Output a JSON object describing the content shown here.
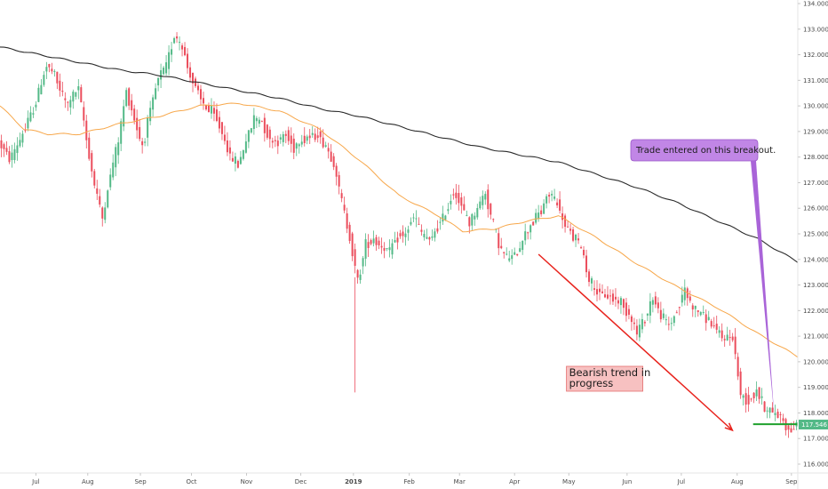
{
  "chart_data": {
    "type": "candlestick",
    "title": "",
    "xlabel": "",
    "ylabel": "",
    "y_axis_position": "right",
    "ylim": [
      115.8,
      134.2
    ],
    "y_ticks": [
      "116.000",
      "117.000",
      "118.000",
      "119.000",
      "120.000",
      "121.000",
      "122.000",
      "123.000",
      "124.000",
      "125.000",
      "126.000",
      "127.000",
      "128.000",
      "129.000",
      "130.000",
      "131.000",
      "132.000",
      "133.000",
      "134.000"
    ],
    "x_ticks": [
      {
        "label": "Jul",
        "pos": 0.045
      },
      {
        "label": "Aug",
        "pos": 0.11
      },
      {
        "label": "Sep",
        "pos": 0.176
      },
      {
        "label": "Oct",
        "pos": 0.24
      },
      {
        "label": "Nov",
        "pos": 0.309
      },
      {
        "label": "Dec",
        "pos": 0.377
      },
      {
        "label": "2019",
        "pos": 0.443
      },
      {
        "label": "Feb",
        "pos": 0.513
      },
      {
        "label": "Mar",
        "pos": 0.576
      },
      {
        "label": "Apr",
        "pos": 0.645
      },
      {
        "label": "May",
        "pos": 0.713
      },
      {
        "label": "Jun",
        "pos": 0.786
      },
      {
        "label": "Jul",
        "pos": 0.854
      },
      {
        "label": "Aug",
        "pos": 0.924
      },
      {
        "label": "Sep",
        "pos": 0.992
      }
    ],
    "price_anchors": [
      [
        0.0,
        128.6
      ],
      [
        0.015,
        127.9
      ],
      [
        0.03,
        128.9
      ],
      [
        0.045,
        130.0
      ],
      [
        0.06,
        131.6
      ],
      [
        0.07,
        131.2
      ],
      [
        0.085,
        130.0
      ],
      [
        0.1,
        130.7
      ],
      [
        0.11,
        128.7
      ],
      [
        0.12,
        126.9
      ],
      [
        0.13,
        125.6
      ],
      [
        0.14,
        127.3
      ],
      [
        0.15,
        128.6
      ],
      [
        0.16,
        130.6
      ],
      [
        0.17,
        129.5
      ],
      [
        0.18,
        128.4
      ],
      [
        0.19,
        129.8
      ],
      [
        0.2,
        131.1
      ],
      [
        0.21,
        131.5
      ],
      [
        0.22,
        132.8
      ],
      [
        0.23,
        132.3
      ],
      [
        0.24,
        131.2
      ],
      [
        0.25,
        130.5
      ],
      [
        0.26,
        129.9
      ],
      [
        0.27,
        129.7
      ],
      [
        0.28,
        129.0
      ],
      [
        0.29,
        128.0
      ],
      [
        0.3,
        127.7
      ],
      [
        0.31,
        128.6
      ],
      [
        0.32,
        129.5
      ],
      [
        0.33,
        129.4
      ],
      [
        0.34,
        128.7
      ],
      [
        0.35,
        128.6
      ],
      [
        0.36,
        128.9
      ],
      [
        0.37,
        128.4
      ],
      [
        0.38,
        128.7
      ],
      [
        0.39,
        128.8
      ],
      [
        0.4,
        128.9
      ],
      [
        0.41,
        128.4
      ],
      [
        0.42,
        127.8
      ],
      [
        0.43,
        126.2
      ],
      [
        0.44,
        124.9
      ],
      [
        0.45,
        123.1
      ],
      [
        0.46,
        124.6
      ],
      [
        0.47,
        124.8
      ],
      [
        0.48,
        124.5
      ],
      [
        0.49,
        124.3
      ],
      [
        0.5,
        124.9
      ],
      [
        0.51,
        125.0
      ],
      [
        0.52,
        125.7
      ],
      [
        0.53,
        125.0
      ],
      [
        0.54,
        124.7
      ],
      [
        0.55,
        125.3
      ],
      [
        0.56,
        125.8
      ],
      [
        0.57,
        126.7
      ],
      [
        0.58,
        126.1
      ],
      [
        0.59,
        125.4
      ],
      [
        0.6,
        126.0
      ],
      [
        0.61,
        126.6
      ],
      [
        0.62,
        125.3
      ],
      [
        0.63,
        124.3
      ],
      [
        0.64,
        124.0
      ],
      [
        0.65,
        124.3
      ],
      [
        0.66,
        125.0
      ],
      [
        0.67,
        125.5
      ],
      [
        0.68,
        125.9
      ],
      [
        0.69,
        126.6
      ],
      [
        0.7,
        126.2
      ],
      [
        0.71,
        125.3
      ],
      [
        0.72,
        124.9
      ],
      [
        0.73,
        124.5
      ],
      [
        0.74,
        123.2
      ],
      [
        0.75,
        122.7
      ],
      [
        0.76,
        122.6
      ],
      [
        0.77,
        122.5
      ],
      [
        0.78,
        122.3
      ],
      [
        0.79,
        121.9
      ],
      [
        0.8,
        121.1
      ],
      [
        0.81,
        121.7
      ],
      [
        0.82,
        122.5
      ],
      [
        0.83,
        121.8
      ],
      [
        0.84,
        121.4
      ],
      [
        0.85,
        122.0
      ],
      [
        0.86,
        122.8
      ],
      [
        0.87,
        122.1
      ],
      [
        0.88,
        121.9
      ],
      [
        0.89,
        121.6
      ],
      [
        0.9,
        121.2
      ],
      [
        0.91,
        120.9
      ],
      [
        0.92,
        121.0
      ],
      [
        0.93,
        118.7
      ],
      [
        0.94,
        118.5
      ],
      [
        0.95,
        118.9
      ],
      [
        0.96,
        118.2
      ],
      [
        0.97,
        118.0
      ],
      [
        0.98,
        117.9
      ],
      [
        0.99,
        117.3
      ],
      [
        1.0,
        117.5
      ]
    ],
    "series": [
      {
        "name": "",
        "color": "#f7a74a",
        "anchors": [
          [
            0.0,
            130.0
          ],
          [
            0.03,
            129.1
          ],
          [
            0.06,
            128.9
          ],
          [
            0.1,
            128.9
          ],
          [
            0.15,
            129.3
          ],
          [
            0.2,
            129.6
          ],
          [
            0.25,
            130.0
          ],
          [
            0.3,
            130.1
          ],
          [
            0.35,
            129.8
          ],
          [
            0.4,
            129.1
          ],
          [
            0.45,
            127.9
          ],
          [
            0.5,
            126.5
          ],
          [
            0.55,
            125.7
          ],
          [
            0.58,
            125.1
          ],
          [
            0.62,
            125.2
          ],
          [
            0.66,
            125.5
          ],
          [
            0.7,
            125.7
          ],
          [
            0.75,
            124.8
          ],
          [
            0.8,
            123.8
          ],
          [
            0.85,
            122.9
          ],
          [
            0.9,
            122.1
          ],
          [
            0.95,
            121.1
          ],
          [
            1.0,
            120.2
          ]
        ]
      },
      {
        "name": "",
        "color": "#2b2b2b",
        "anchors": [
          [
            0.0,
            132.3
          ],
          [
            0.05,
            132.0
          ],
          [
            0.1,
            131.7
          ],
          [
            0.15,
            131.4
          ],
          [
            0.2,
            131.2
          ],
          [
            0.25,
            130.9
          ],
          [
            0.3,
            130.6
          ],
          [
            0.35,
            130.3
          ],
          [
            0.4,
            129.9
          ],
          [
            0.45,
            129.6
          ],
          [
            0.5,
            129.2
          ],
          [
            0.55,
            128.8
          ],
          [
            0.6,
            128.4
          ],
          [
            0.65,
            128.1
          ],
          [
            0.7,
            127.8
          ],
          [
            0.75,
            127.3
          ],
          [
            0.8,
            126.8
          ],
          [
            0.85,
            126.2
          ],
          [
            0.9,
            125.5
          ],
          [
            0.95,
            124.8
          ],
          [
            1.0,
            123.9
          ]
        ]
      }
    ],
    "last_price": "117.546",
    "last_price_color": "#53b987",
    "candle_up_color": "#53b987",
    "candle_down_color": "#eb4d5c",
    "annotations": [
      {
        "text": "Trade entered on this breakout.",
        "style": "purple-callout"
      },
      {
        "text_lines": [
          "Bearish trend in",
          "progress"
        ],
        "style": "red-box"
      }
    ],
    "breakout_line_price": 117.56,
    "grid": false,
    "legend": "none"
  }
}
